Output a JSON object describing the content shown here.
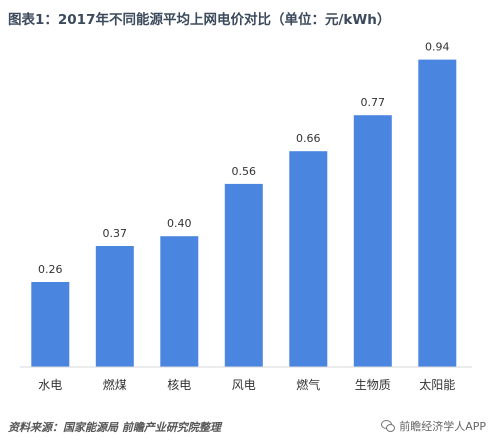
{
  "chart_data": {
    "type": "bar",
    "title": "图表1：2017年不同能源平均上网电价对比（单位：元/kWh）",
    "categories": [
      "水电",
      "燃煤",
      "核电",
      "风电",
      "燃气",
      "生物质",
      "太阳能"
    ],
    "values": [
      0.26,
      0.37,
      0.4,
      0.56,
      0.66,
      0.77,
      0.94
    ],
    "value_labels": [
      "0.26",
      "0.37",
      "0.40",
      "0.56",
      "0.66",
      "0.77",
      "0.94"
    ],
    "ylim": [
      0,
      1.0
    ],
    "grid": false,
    "bar_color": "#4a86e0"
  },
  "source": "资料来源：国家能源局 前瞻产业研究院整理",
  "watermark": "前瞻经济学人APP"
}
